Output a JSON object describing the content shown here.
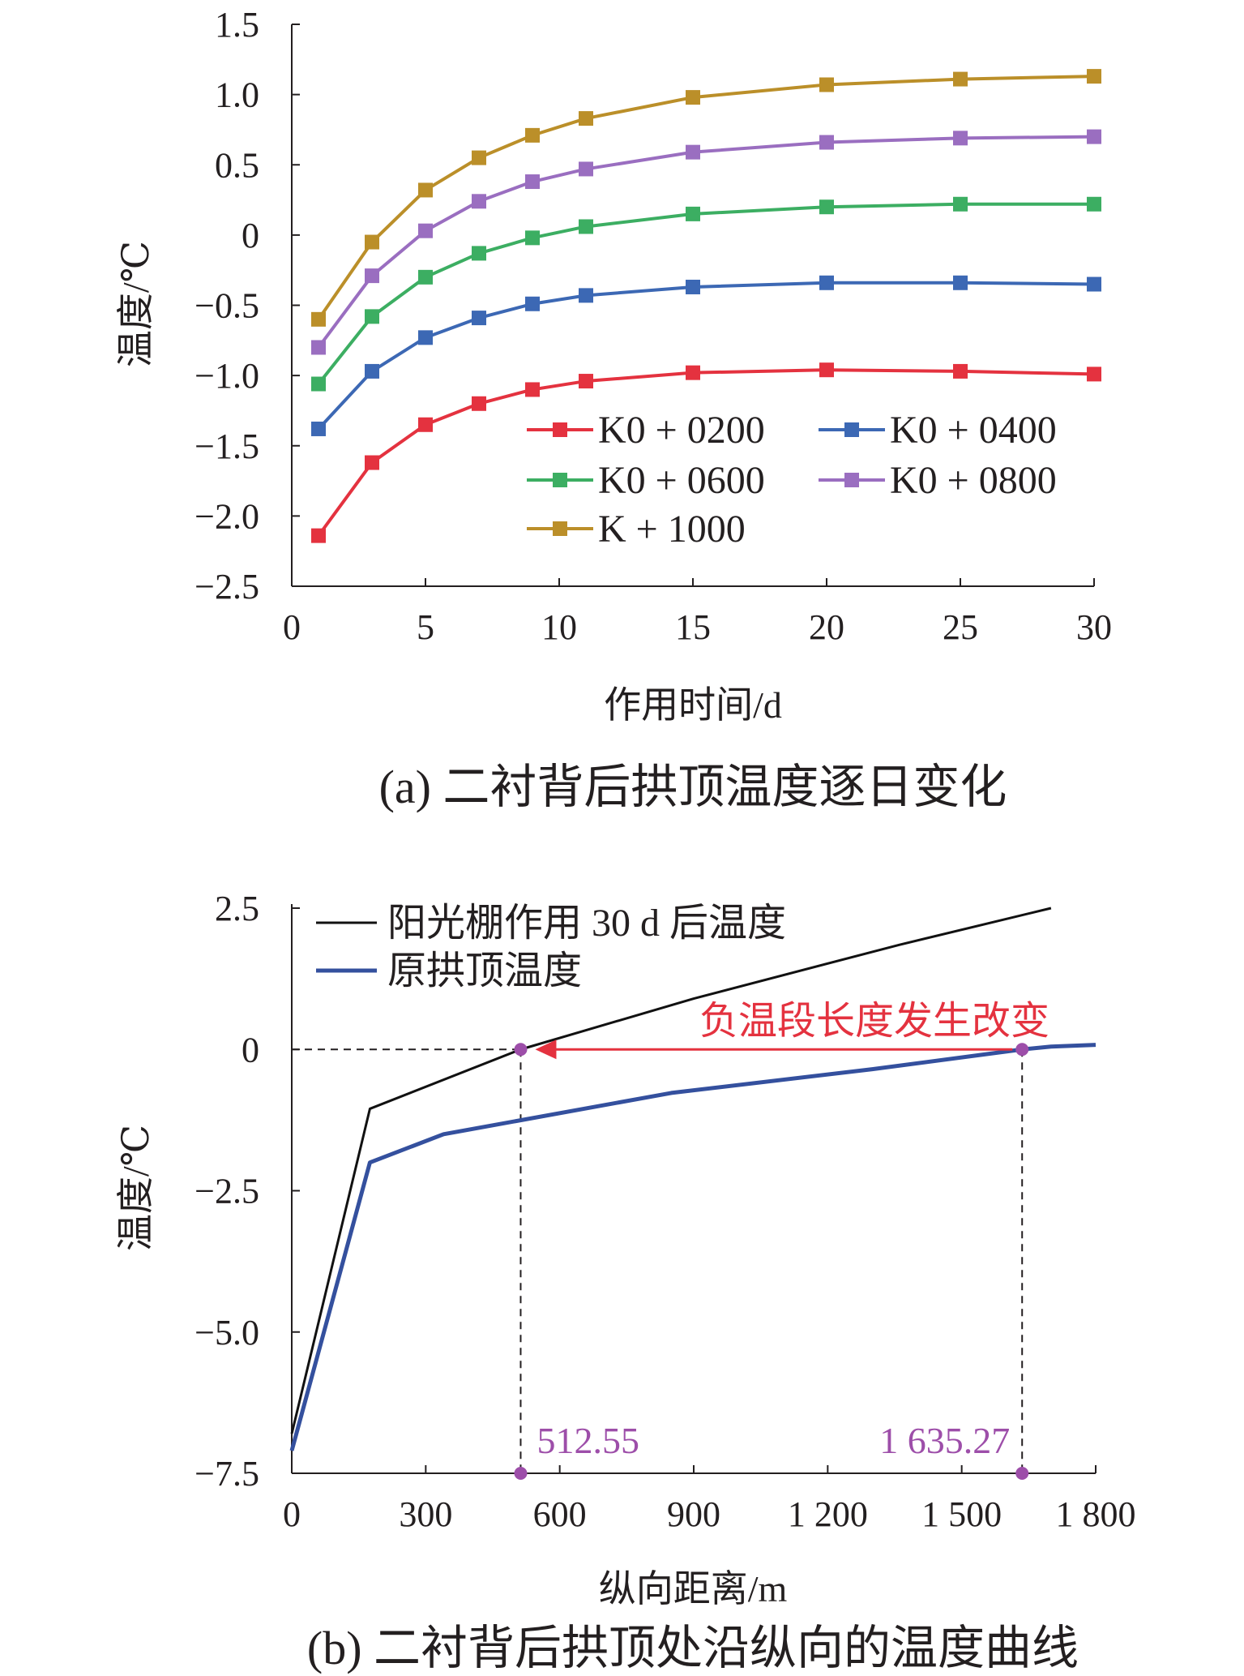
{
  "chart_data": [
    {
      "type": "line",
      "caption": "(a) 二衬背后拱顶温度逐日变化",
      "xlabel": "作用时间/d",
      "ylabel": "温度/℃",
      "xlim": [
        0,
        30
      ],
      "ylim": [
        -2.5,
        1.5
      ],
      "x_ticks": [
        "0",
        "5",
        "10",
        "15",
        "20",
        "25",
        "30"
      ],
      "x_tick_values": [
        0,
        5,
        10,
        15,
        20,
        25,
        30
      ],
      "y_ticks": [
        "1.5",
        "1.0",
        "0.5",
        "0",
        "−0.5",
        "−1.0",
        "−1.5",
        "−2.0",
        "−2.5"
      ],
      "y_tick_values": [
        1.5,
        1.0,
        0.5,
        0,
        -0.5,
        -1.0,
        -1.5,
        -2.0,
        -2.5
      ],
      "grid": false,
      "legend_position": "lower-right",
      "x": [
        1,
        3,
        5,
        7,
        9,
        11,
        15,
        20,
        25,
        30
      ],
      "series": [
        {
          "name": "K0 + 0200",
          "color": "#e4323f",
          "marker": "square",
          "values": [
            -2.14,
            -1.62,
            -1.35,
            -1.2,
            -1.1,
            -1.04,
            -0.98,
            -0.96,
            -0.97,
            -0.99
          ]
        },
        {
          "name": "K0 + 0400",
          "color": "#3c68b4",
          "marker": "square",
          "values": [
            -1.38,
            -0.97,
            -0.73,
            -0.59,
            -0.49,
            -0.43,
            -0.37,
            -0.34,
            -0.34,
            -0.35
          ]
        },
        {
          "name": "K0 + 0600",
          "color": "#3cae62",
          "marker": "square",
          "values": [
            -1.06,
            -0.58,
            -0.3,
            -0.13,
            -0.02,
            0.06,
            0.15,
            0.2,
            0.22,
            0.22
          ]
        },
        {
          "name": "K0 + 0800",
          "color": "#9a6ec0",
          "marker": "square",
          "values": [
            -0.8,
            -0.29,
            0.03,
            0.24,
            0.38,
            0.47,
            0.59,
            0.66,
            0.69,
            0.7
          ]
        },
        {
          "name": "K + 1000",
          "color": "#bb8f29",
          "marker": "square",
          "values": [
            -0.6,
            -0.05,
            0.32,
            0.55,
            0.71,
            0.83,
            0.98,
            1.07,
            1.11,
            1.13
          ]
        }
      ]
    },
    {
      "type": "line",
      "caption": "(b) 二衬背后拱顶处沿纵向的温度曲线",
      "xlabel": "纵向距离/m",
      "ylabel": "温度/℃",
      "xlim": [
        0,
        1800
      ],
      "ylim": [
        -7.5,
        2.5
      ],
      "x_ticks": [
        "0",
        "300",
        "600",
        "900",
        "1 200",
        "1 500",
        "1 800"
      ],
      "x_tick_values": [
        0,
        300,
        600,
        900,
        1200,
        1500,
        1800
      ],
      "y_ticks": [
        "2.5",
        "0",
        "−2.5",
        "−5.0",
        "−7.5"
      ],
      "y_tick_values": [
        2.5,
        0,
        -2.5,
        -5.0,
        -7.5
      ],
      "grid": false,
      "legend_position": "top-left",
      "series": [
        {
          "name": "阳光棚作用 30 d 后温度",
          "color": "#111111",
          "x": [
            0,
            175,
            512.55,
            900,
            1360,
            1700
          ],
          "values": [
            -6.8,
            -1.05,
            0,
            0.9,
            1.85,
            2.5
          ]
        },
        {
          "name": "原拱顶温度",
          "color": "#34509e",
          "x": [
            0,
            175,
            340,
            850,
            1300,
            1635.27,
            1700,
            1800
          ],
          "values": [
            -7.1,
            -2.0,
            -1.5,
            -0.77,
            -0.35,
            0,
            0.05,
            0.08
          ]
        }
      ],
      "annotations": {
        "arrow_label": "负温段长度发生改变",
        "arrow_color": "#e4323f",
        "marker_color": "#9d4ea9",
        "points": [
          {
            "label": "512.55",
            "x": 512.55,
            "y": 0
          },
          {
            "label": "1 635.27",
            "x": 1635.27,
            "y": 0
          }
        ]
      }
    }
  ]
}
